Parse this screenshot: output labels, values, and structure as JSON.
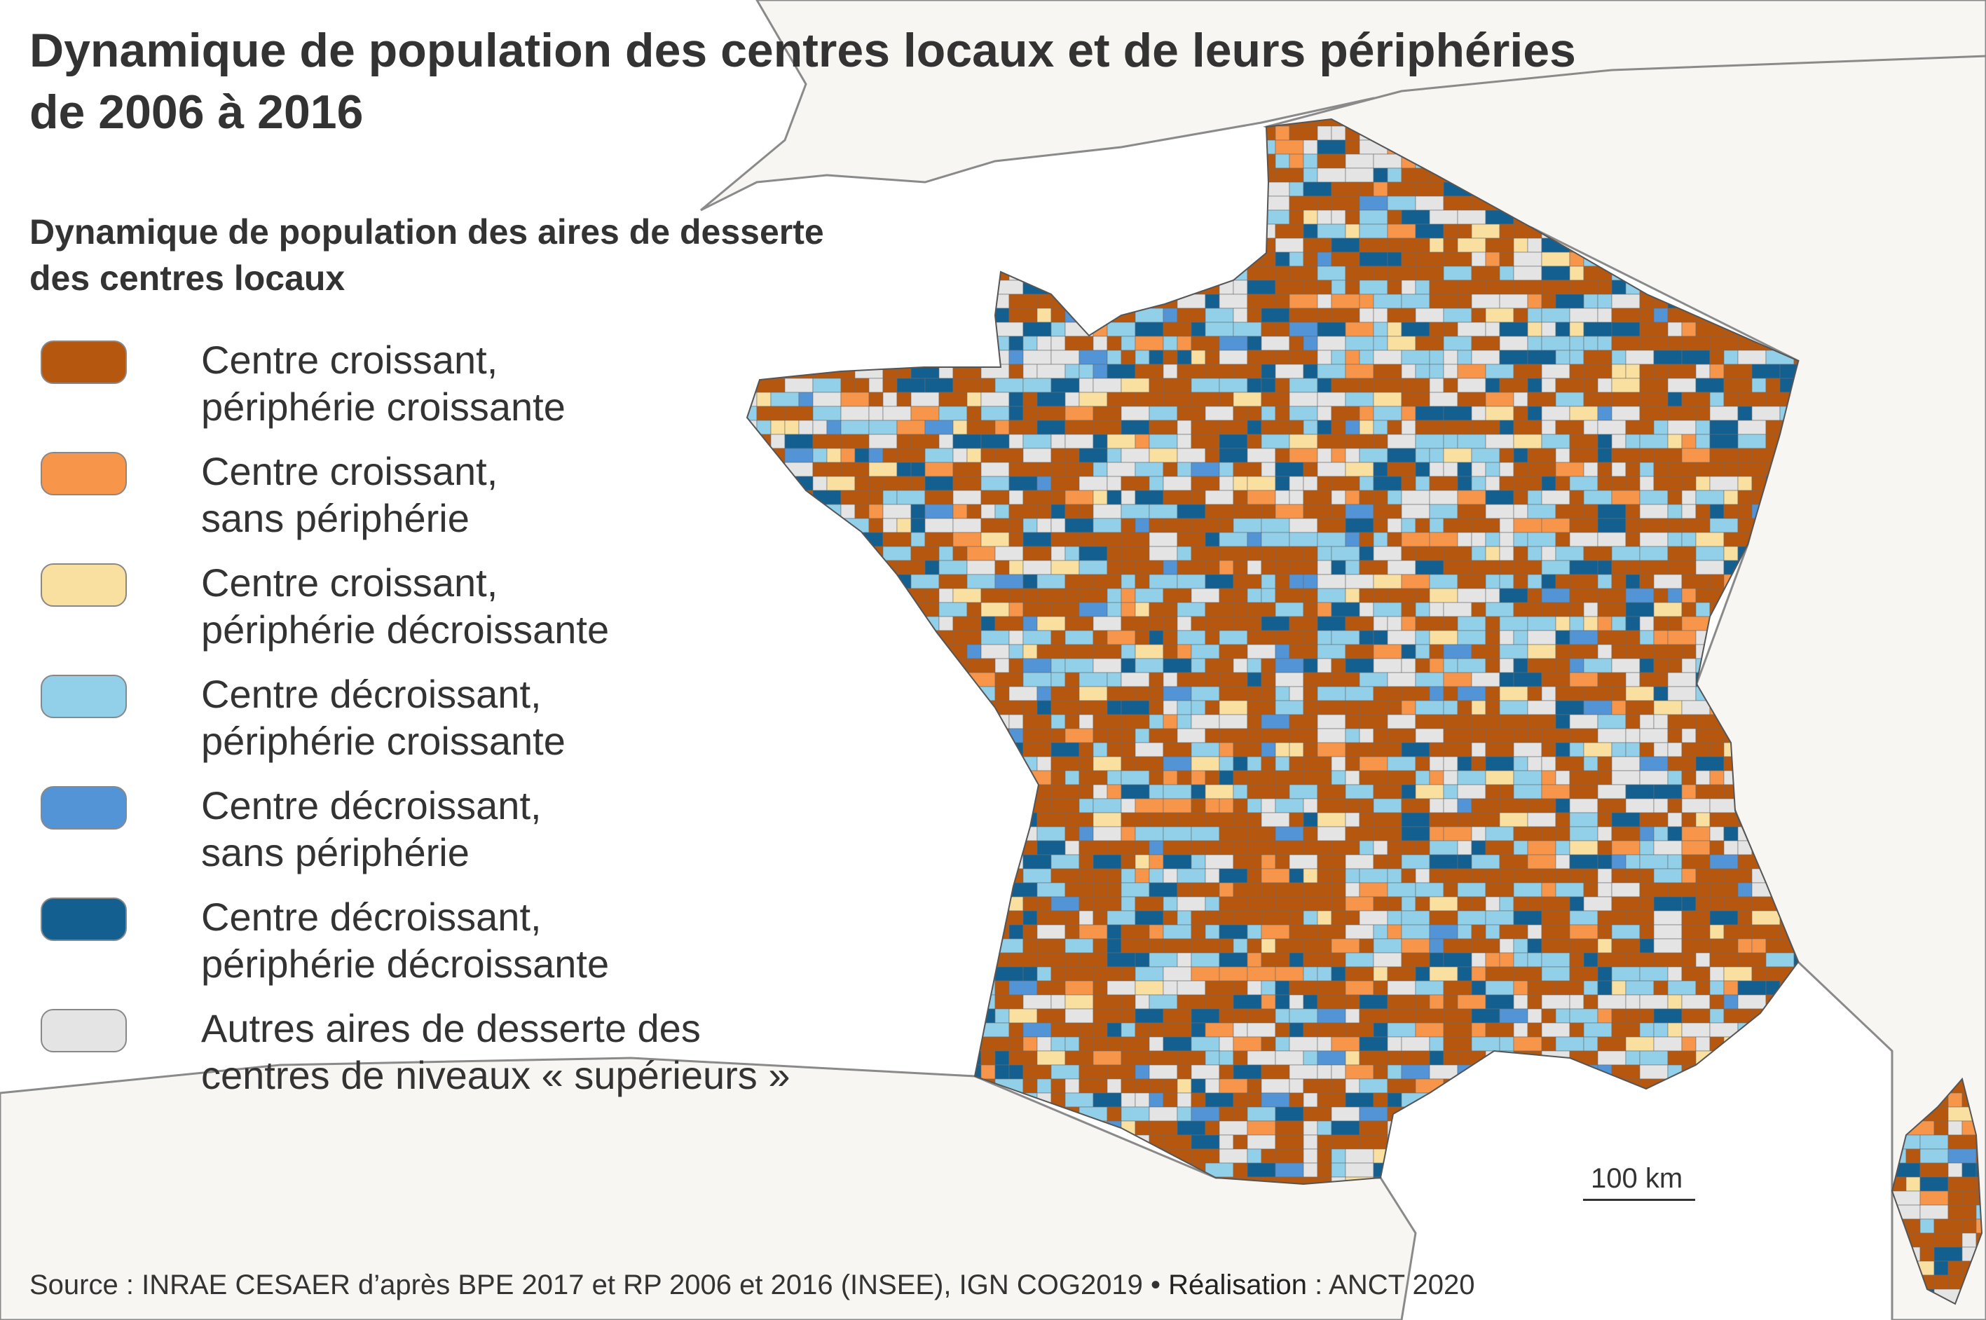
{
  "title": {
    "line1": "Dynamique de population des centres locaux et de leurs périphéries",
    "line2": "de 2006 à 2016"
  },
  "legend": {
    "title_line1": "Dynamique de population des aires de desserte",
    "title_line2": "des centres locaux",
    "items": [
      {
        "line1": "Centre croissant,",
        "line2": "périphérie croissante",
        "color": "#b5570f",
        "weight": 0.42
      },
      {
        "line1": "Centre croissant,",
        "line2": "sans périphérie",
        "color": "#f7964b",
        "weight": 0.06
      },
      {
        "line1": "Centre croissant,",
        "line2": "périphérie décroissante",
        "color": "#fae0a0",
        "weight": 0.05
      },
      {
        "line1": "Centre décroissant,",
        "line2": "périphérie croissante",
        "color": "#92cfe8",
        "weight": 0.17
      },
      {
        "line1": "Centre décroissant,",
        "line2": "sans périphérie",
        "color": "#5294d6",
        "weight": 0.03
      },
      {
        "line1": "Centre décroissant,",
        "line2": "périphérie décroissante",
        "color": "#135f90",
        "weight": 0.1
      },
      {
        "line1": "Autres aires de desserte des",
        "line2": "centres de niveaux « supérieurs »",
        "color": "#e4e4e4",
        "weight": 0.17
      }
    ]
  },
  "scale": {
    "label": "100 km"
  },
  "source": {
    "prefix": "Source  : INRAE CESAER d’après BPE 2017 et RP 2006 et 2016 (INSEE), IGN COG2019 • ",
    "realisation_label": "Réalisation",
    "realisation_value": " : ANCT 2020"
  },
  "colors": {
    "land": "#f8f6f2",
    "border": "#8a8a8a",
    "sea": "#ffffff"
  }
}
